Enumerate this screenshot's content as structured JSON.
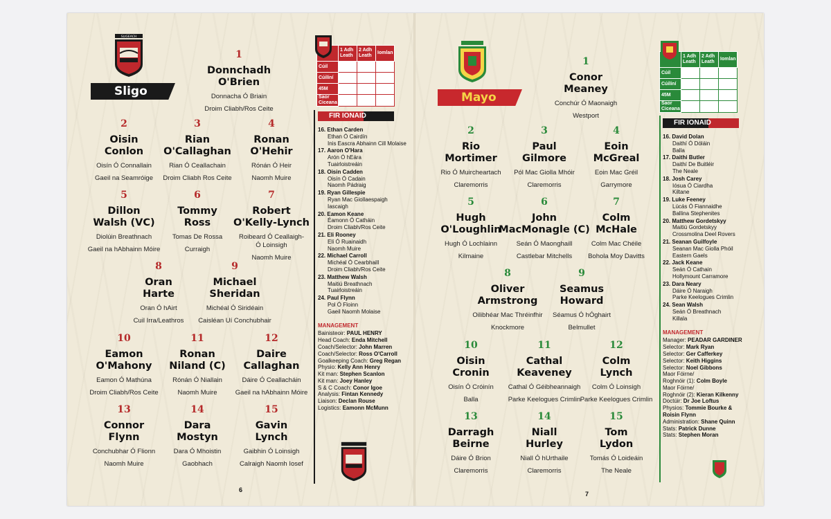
{
  "left": {
    "crest_text": "SLIGEACH",
    "team": "Sligo",
    "page_number": "6",
    "players": [
      {
        "num": "1",
        "name": "Donnchadh\nO'Brien",
        "irish": "Donnacha Ó Briain",
        "club": "Droim Cliabh/Ros Ceite"
      },
      {
        "num": "2",
        "name": "Oisin\nConlon",
        "irish": "Oisín Ó Connallain",
        "club": "Gaeil na Seamróige"
      },
      {
        "num": "3",
        "name": "Rian\nO'Callaghan",
        "irish": "Rian Ó Ceallachain",
        "club": "Droim Cliabh Ros Ceite"
      },
      {
        "num": "4",
        "name": "Ronan\nO'Hehir",
        "irish": "Rónán Ó Heir",
        "club": "Naomh Muire"
      },
      {
        "num": "5",
        "name": "Dillon\nWalsh (VC)",
        "irish": "Diolúin Breathnach",
        "club": "Gaeil na hAbhainn Móire"
      },
      {
        "num": "6",
        "name": "Tommy\nRoss",
        "irish": "Tomas De Rossa",
        "club": "Curraigh"
      },
      {
        "num": "7",
        "name": "Robert\nO'Kelly-Lynch",
        "irish": "Roibeard Ó Ceallaigh-\nÓ Loinsigh",
        "club": "Naomh Muire"
      },
      {
        "num": "8",
        "name": "Oran\nHarte",
        "irish": "Oran Ó hAirt",
        "club": "Cuil Irra/Leathros"
      },
      {
        "num": "9",
        "name": "Michael\nSheridan",
        "irish": "Michéal Ó Siridéain",
        "club": "Caisléan Uí Conchubhair"
      },
      {
        "num": "10",
        "name": "Eamon\nO'Mahony",
        "irish": "Eamon Ó Mathúna",
        "club": "Droim Cliabh/Ros Ceite"
      },
      {
        "num": "11",
        "name": "Ronan\nNiland (C)",
        "irish": "Rónán Ó Niallain",
        "club": "Naomh Muire"
      },
      {
        "num": "12",
        "name": "Daire\nCallaghan",
        "irish": "Dáire Ó Ceallacháin",
        "club": "Gaeil na hAbhainn Móire"
      },
      {
        "num": "13",
        "name": "Connor\nFlynn",
        "irish": "Conchubhar Ó Flionn",
        "club": "Naomh Muire"
      },
      {
        "num": "14",
        "name": "Dara\nMostyn",
        "irish": "Dara Ó Mhoistin",
        "club": "Gaobhach"
      },
      {
        "num": "15",
        "name": "Gavin\nLynch",
        "irish": "Gaibhin Ó Loinsigh",
        "club": "Calraigh Naomh Iosef"
      }
    ],
    "score_box": {
      "cols": [
        "1 Adh\nLeath",
        "2 Adh\nLeath",
        "Iomlan"
      ],
      "rows": [
        "Cúil",
        "Cúilíní",
        "45M",
        "Saor\nCiceana"
      ]
    },
    "subs_title": "FIR IONAID",
    "subs": [
      {
        "n": "16.",
        "name": "Ethan Carden",
        "l2": "Ethan Ó Cairdín",
        "l3": "Inis Eascra Abhainn Cill Molaise"
      },
      {
        "n": "17.",
        "name": "Aaron O'Hara",
        "l2": "Arón Ó hEára",
        "l3": "Tuairloistreáin"
      },
      {
        "n": "18.",
        "name": "Oisin Cadden",
        "l2": "Oisín Ó Cadain",
        "l3": "Naomh Pádraig"
      },
      {
        "n": "19.",
        "name": "Ryan Gillespie",
        "l2": "Ryan Mac Giollaespaigh",
        "l3": "Iascaigh"
      },
      {
        "n": "20.",
        "name": "Eamon Keane",
        "l2": "Éamonn Ó Catháin",
        "l3": "Droim Cliabh/Ros Ceite"
      },
      {
        "n": "21.",
        "name": "Eli Rooney",
        "l2": "Elí Ó Ruainaidh",
        "l3": "Naomh Muire"
      },
      {
        "n": "22.",
        "name": "Michael Carroll",
        "l2": "Michéal Ó Cearbhaill",
        "l3": "Droim Cliabh/Ros Ceite"
      },
      {
        "n": "23.",
        "name": "Matthew Walsh",
        "l2": "Maitiú Breathnach",
        "l3": "Tuairloistreáin"
      },
      {
        "n": "24.",
        "name": "Paul Flynn",
        "l2": "Pol Ó Floinn",
        "l3": "Gaeil Naomh Molaise"
      }
    ],
    "mgmt_title": "MANAGEMENT",
    "mgmt": [
      {
        "role": "Bainisteoir: ",
        "name": "PAUL HENRY"
      },
      {
        "role": "Head Coach: ",
        "name": "Enda Mitchell"
      },
      {
        "role": "Coach/Selector: ",
        "name": "John Marren"
      },
      {
        "role": "Coach/Selector: ",
        "name": "Ross O'Carroll"
      },
      {
        "role": "Goalkeeping Coach: ",
        "name": "Greg Regan"
      },
      {
        "role": "Physio: ",
        "name": "Kelly Ann Henry"
      },
      {
        "role": "Kit man: ",
        "name": "Stephen Scanlon"
      },
      {
        "role": "Kit man: ",
        "name": "Joey Hanley"
      },
      {
        "role": "S & C Coach: ",
        "name": "Conor Igoe"
      },
      {
        "role": "Analysis: ",
        "name": "Fintan Kennedy"
      },
      {
        "role": "Liaison: ",
        "name": "Declan Rouse"
      },
      {
        "role": "Logistics: ",
        "name": "Eamonn McMunn"
      }
    ]
  },
  "right": {
    "team": "Mayo",
    "page_number": "7",
    "players": [
      {
        "num": "1",
        "name": "Conor\nMeaney",
        "irish": "Conchúr Ó Maonaigh",
        "club": "Westport"
      },
      {
        "num": "2",
        "name": "Rio\nMortimer",
        "irish": "Rio Ó Muircheartach",
        "club": "Claremorris"
      },
      {
        "num": "3",
        "name": "Paul\nGilmore",
        "irish": "Pól Mac Giolla Mhóir",
        "club": "Claremorris"
      },
      {
        "num": "4",
        "name": "Eoin\nMcGreal",
        "irish": "Eoin Mac Gréil",
        "club": "Garrymore"
      },
      {
        "num": "5",
        "name": "Hugh\nO'Loughlin",
        "irish": "Hugh Ó Lochlainn",
        "club": "Kilmaine"
      },
      {
        "num": "6",
        "name": "John\nMacMonagle (C)",
        "irish": "Seán Ó Maonghaill",
        "club": "Castlebar Mitchells"
      },
      {
        "num": "7",
        "name": "Colm\nMcHale",
        "irish": "Colm Mac Chéile",
        "club": "Bohola Moy Davitts"
      },
      {
        "num": "8",
        "name": "Oliver\nArmstrong",
        "irish": "Oilibhéar Mac Thréinfhir",
        "club": "Knockmore"
      },
      {
        "num": "9",
        "name": "Seamus\nHoward",
        "irish": "Séamus Ó hÓghairt",
        "club": "Belmullet"
      },
      {
        "num": "10",
        "name": "Oisin\nCronin",
        "irish": "Oisín Ó Cróinín",
        "club": "Balla"
      },
      {
        "num": "11",
        "name": "Cathal\nKeaveney",
        "irish": "Cathal Ó Géibheannaigh",
        "club": "Parke Keelogues Crimlin"
      },
      {
        "num": "12",
        "name": "Colm\nLynch",
        "irish": "Colm Ó Loinsigh",
        "club": "Parke Keelogues Crimlin"
      },
      {
        "num": "13",
        "name": "Darragh\nBeirne",
        "irish": "Dáire Ó Brion",
        "club": "Claremorris"
      },
      {
        "num": "14",
        "name": "Niall\nHurley",
        "irish": "Niall Ó hUrthaile",
        "club": "Claremorris"
      },
      {
        "num": "15",
        "name": "Tom\nLydon",
        "irish": "Tomás Ó Loideáin",
        "club": "The Neale"
      }
    ],
    "score_box": {
      "cols": [
        "1 Adh\nLeath",
        "2 Adh\nLeath",
        "Iomlan"
      ],
      "rows": [
        "Cúil",
        "Cúilíní",
        "45M",
        "Saor\nCiceana"
      ]
    },
    "subs_title": "FIR IONAID",
    "subs": [
      {
        "n": "16.",
        "name": "David Dolan",
        "l2": "Daithí Ó Dóláin",
        "l3": "Balla"
      },
      {
        "n": "17.",
        "name": "Daithi Butler",
        "l2": "Daithí De Buitléir",
        "l3": "The Neale"
      },
      {
        "n": "18.",
        "name": "Josh Carey",
        "l2": "Iósua Ó Ciardha",
        "l3": "Kiltane"
      },
      {
        "n": "19.",
        "name": "Luke Feeney",
        "l2": "Lúcás Ó Fiannaidhe",
        "l3": "Ballina Stephenites"
      },
      {
        "n": "20.",
        "name": "Matthew Gordetskyy",
        "l2": "Maitiú Gordetskyy",
        "l3": "Crossmolina Deel Rovers"
      },
      {
        "n": "21.",
        "name": "Seanan Guilfoyle",
        "l2": "Seanan Mac Giolla Phóil",
        "l3": "Eastern Gaels"
      },
      {
        "n": "22.",
        "name": "Jack Keane",
        "l2": "Seán Ó Cathain",
        "l3": "Hollymount Carramore"
      },
      {
        "n": "23.",
        "name": "Dara Neary",
        "l2": "Dáire Ó Naraigh",
        "l3": "Parke Keelogues Crimlin"
      },
      {
        "n": "24.",
        "name": "Sean Walsh",
        "l2": "Seán Ó Breathnach",
        "l3": "Killala"
      }
    ],
    "mgmt_title": "MANAGEMENT",
    "mgmt": [
      {
        "role": "Manager: ",
        "name": "PEADAR GARDINER"
      },
      {
        "role": "Selector: ",
        "name": "Mark Ryan"
      },
      {
        "role": "Selector: ",
        "name": "Ger Cafferkey"
      },
      {
        "role": "Selector: ",
        "name": "Keith Higgins"
      },
      {
        "role": "Selector: ",
        "name": "Noel Gibbons"
      },
      {
        "role": "Maor Fóirne/",
        "name": ""
      },
      {
        "role": "Roghnóir (1): ",
        "name": "Colm Boyle"
      },
      {
        "role": "Maor Fóirne/",
        "name": ""
      },
      {
        "role": "Roghnóir (2): ",
        "name": "Kieran Kilkenny"
      },
      {
        "role": "Doctúir: ",
        "name": "Dr Joe Loftus"
      },
      {
        "role": "Physios: ",
        "name": "Tommie Bourke &"
      },
      {
        "role": "",
        "name": "Roisin Flynn"
      },
      {
        "role": "Administration: ",
        "name": "Shane Quinn"
      },
      {
        "role": "Stats: ",
        "name": "Patrick Dunne"
      },
      {
        "role": "Stats: ",
        "name": "Stephen Moran"
      }
    ]
  },
  "colors": {
    "sligo_red": "#c0282d",
    "sligo_black": "#1a1a1a",
    "mayo_green": "#2a8a3a",
    "mayo_red": "#c8282d",
    "paper": "#f0ead9"
  }
}
